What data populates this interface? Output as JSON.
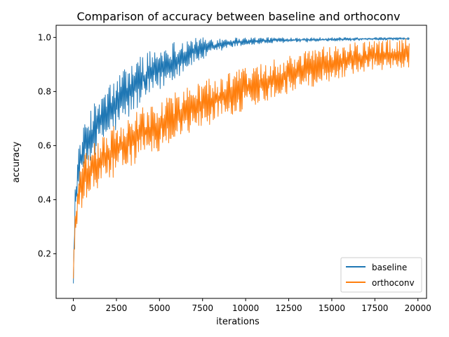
{
  "chart_data": {
    "type": "line",
    "title": "Comparison of accuracy between baseline and orthoconv",
    "xlabel": "iterations",
    "ylabel": "accuracy",
    "xlim": [
      -1000,
      20500
    ],
    "ylim": [
      0.035,
      1.045
    ],
    "x_ticks": [
      0,
      2500,
      5000,
      7500,
      10000,
      12500,
      15000,
      17500,
      20000
    ],
    "x_tick_labels": [
      "0",
      "2500",
      "5000",
      "7500",
      "10000",
      "12500",
      "15000",
      "17500",
      "20000"
    ],
    "y_ticks": [
      0.2,
      0.4,
      0.6,
      0.8,
      1.0
    ],
    "y_tick_labels": [
      "0.2",
      "0.4",
      "0.6",
      "0.8",
      "1.0"
    ],
    "grid": false,
    "legend_position": "lower-right",
    "series": [
      {
        "name": "baseline",
        "color": "#1f77b4",
        "band": [
          {
            "x": 0,
            "low": 0.09,
            "high": 0.15
          },
          {
            "x": 100,
            "low": 0.3,
            "high": 0.46
          },
          {
            "x": 300,
            "low": 0.44,
            "high": 0.6
          },
          {
            "x": 600,
            "low": 0.5,
            "high": 0.67
          },
          {
            "x": 1000,
            "low": 0.54,
            "high": 0.74
          },
          {
            "x": 1500,
            "low": 0.59,
            "high": 0.78
          },
          {
            "x": 2000,
            "low": 0.62,
            "high": 0.82
          },
          {
            "x": 2500,
            "low": 0.65,
            "high": 0.86
          },
          {
            "x": 3000,
            "low": 0.68,
            "high": 0.89
          },
          {
            "x": 3500,
            "low": 0.72,
            "high": 0.92
          },
          {
            "x": 4000,
            "low": 0.75,
            "high": 0.94
          },
          {
            "x": 5000,
            "low": 0.8,
            "high": 0.97
          },
          {
            "x": 6000,
            "low": 0.85,
            "high": 0.99
          },
          {
            "x": 7000,
            "low": 0.9,
            "high": 1.0
          },
          {
            "x": 8000,
            "low": 0.93,
            "high": 1.0
          },
          {
            "x": 9000,
            "low": 0.96,
            "high": 1.0
          },
          {
            "x": 10000,
            "low": 0.97,
            "high": 1.0
          },
          {
            "x": 12000,
            "low": 0.98,
            "high": 1.0
          },
          {
            "x": 15000,
            "low": 0.985,
            "high": 1.0
          },
          {
            "x": 17500,
            "low": 0.99,
            "high": 1.0
          },
          {
            "x": 19500,
            "low": 0.99,
            "high": 1.0
          }
        ]
      },
      {
        "name": "orthoconv",
        "color": "#ff7f0e",
        "band": [
          {
            "x": 0,
            "low": 0.1,
            "high": 0.16
          },
          {
            "x": 100,
            "low": 0.22,
            "high": 0.38
          },
          {
            "x": 300,
            "low": 0.33,
            "high": 0.5
          },
          {
            "x": 600,
            "low": 0.38,
            "high": 0.56
          },
          {
            "x": 1000,
            "low": 0.41,
            "high": 0.6
          },
          {
            "x": 1500,
            "low": 0.44,
            "high": 0.63
          },
          {
            "x": 2000,
            "low": 0.47,
            "high": 0.66
          },
          {
            "x": 2500,
            "low": 0.49,
            "high": 0.68
          },
          {
            "x": 3000,
            "low": 0.51,
            "high": 0.7
          },
          {
            "x": 4000,
            "low": 0.55,
            "high": 0.74
          },
          {
            "x": 5000,
            "low": 0.58,
            "high": 0.77
          },
          {
            "x": 6000,
            "low": 0.62,
            "high": 0.8
          },
          {
            "x": 7000,
            "low": 0.65,
            "high": 0.83
          },
          {
            "x": 8000,
            "low": 0.68,
            "high": 0.85
          },
          {
            "x": 9000,
            "low": 0.71,
            "high": 0.87
          },
          {
            "x": 10000,
            "low": 0.73,
            "high": 0.89
          },
          {
            "x": 11000,
            "low": 0.76,
            "high": 0.91
          },
          {
            "x": 12000,
            "low": 0.78,
            "high": 0.93
          },
          {
            "x": 13000,
            "low": 0.8,
            "high": 0.95
          },
          {
            "x": 14000,
            "low": 0.82,
            "high": 0.96
          },
          {
            "x": 15000,
            "low": 0.84,
            "high": 0.97
          },
          {
            "x": 16000,
            "low": 0.86,
            "high": 0.98
          },
          {
            "x": 17000,
            "low": 0.87,
            "high": 0.985
          },
          {
            "x": 18000,
            "low": 0.88,
            "high": 0.99
          },
          {
            "x": 19500,
            "low": 0.89,
            "high": 0.995
          }
        ]
      }
    ]
  }
}
